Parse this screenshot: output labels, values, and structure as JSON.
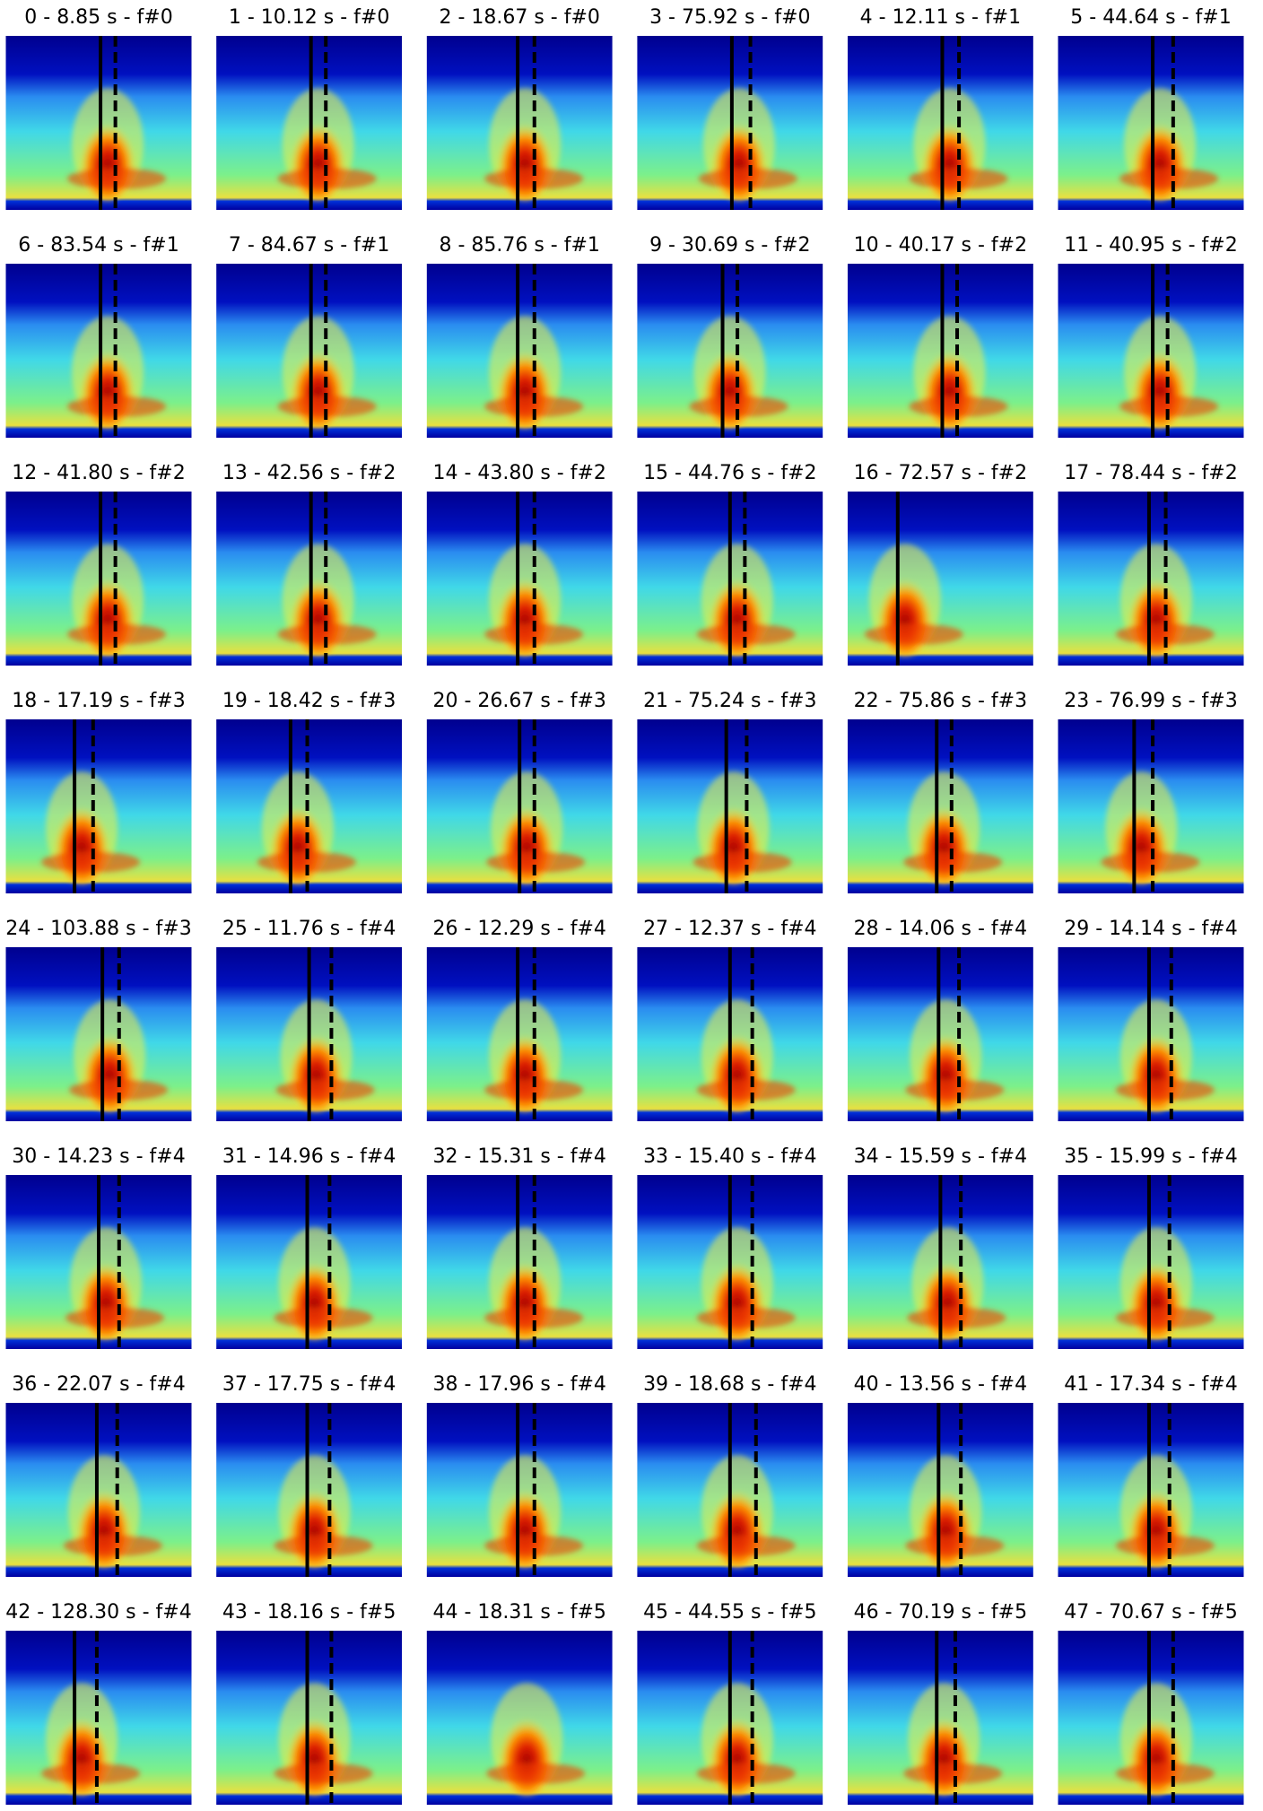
{
  "panels": [
    {
      "title": "0 - 8.85 s - f#0"
    },
    {
      "title": "1 - 10.12 s - f#0"
    },
    {
      "title": "2 - 18.67 s - f#0"
    },
    {
      "title": "3 - 75.92 s - f#0"
    },
    {
      "title": "4 - 12.11 s - f#1"
    },
    {
      "title": "5 - 44.64 s - f#1"
    },
    {
      "title": "6 - 83.54 s - f#1"
    },
    {
      "title": "7 - 84.67 s - f#1"
    },
    {
      "title": "8 - 85.76 s - f#1"
    },
    {
      "title": "9 - 30.69 s - f#2"
    },
    {
      "title": "10 - 40.17 s - f#2"
    },
    {
      "title": "11 - 40.95 s - f#2"
    },
    {
      "title": "12 - 41.80 s - f#2"
    },
    {
      "title": "13 - 42.56 s - f#2"
    },
    {
      "title": "14 - 43.80 s - f#2"
    },
    {
      "title": "15 - 44.76 s - f#2"
    },
    {
      "title": "16 - 72.57 s - f#2"
    },
    {
      "title": "17 - 78.44 s - f#2"
    },
    {
      "title": "18 - 17.19 s - f#3"
    },
    {
      "title": "19 - 18.42 s - f#3"
    },
    {
      "title": "20 - 26.67 s - f#3"
    },
    {
      "title": "21 - 75.24 s - f#3"
    },
    {
      "title": "22 - 75.86 s - f#3"
    },
    {
      "title": "23 - 76.99 s - f#3"
    },
    {
      "title": "24 - 103.88 s - f#3"
    },
    {
      "title": "25 - 11.76 s - f#4"
    },
    {
      "title": "26 - 12.29 s - f#4"
    },
    {
      "title": "27 - 12.37 s - f#4"
    },
    {
      "title": "28 - 14.06 s - f#4"
    },
    {
      "title": "29 - 14.14 s - f#4"
    },
    {
      "title": "30 - 14.23 s - f#4"
    },
    {
      "title": "31 - 14.96 s - f#4"
    },
    {
      "title": "32 - 15.31 s - f#4"
    },
    {
      "title": "33 - 15.40 s - f#4"
    },
    {
      "title": "34 - 15.59 s - f#4"
    },
    {
      "title": "35 - 15.99 s - f#4"
    },
    {
      "title": "36 - 22.07 s - f#4"
    },
    {
      "title": "37 - 17.75 s - f#4"
    },
    {
      "title": "38 - 17.96 s - f#4"
    },
    {
      "title": "39 - 18.68 s - f#4"
    },
    {
      "title": "40 - 13.56 s - f#4"
    },
    {
      "title": "41 - 17.34 s - f#4"
    },
    {
      "title": "42 - 128.30 s - f#4"
    },
    {
      "title": "43 - 18.16 s - f#5"
    },
    {
      "title": "44 - 18.31 s - f#5"
    },
    {
      "title": "45 - 44.55 s - f#5"
    },
    {
      "title": "46 - 70.19 s - f#5"
    },
    {
      "title": "47 - 70.67 s - f#5"
    }
  ]
}
